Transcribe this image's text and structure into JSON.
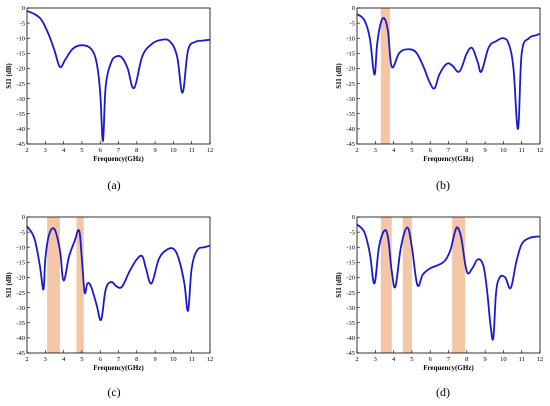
{
  "chart_data": [
    {
      "type": "line",
      "panel_label": "(a)",
      "xlabel": "Frequency(GHz)",
      "ylabel": "S11 (dB)",
      "xlim": [
        2,
        12
      ],
      "ylim": [
        -45,
        0
      ],
      "xticks": [
        2,
        3,
        4,
        5,
        6,
        7,
        8,
        9,
        10,
        11,
        12
      ],
      "yticks": [
        0,
        -5,
        -10,
        -15,
        -20,
        -25,
        -30,
        -35,
        -40,
        -45
      ],
      "line_color": "#1a1acc",
      "band_color": "#f5c6a5",
      "bands": [],
      "series": [
        {
          "x": [
            2,
            2.4,
            2.8,
            3.2,
            3.5,
            3.8,
            4.1,
            4.5,
            5.0,
            5.5,
            5.8,
            6.0,
            6.15,
            6.3,
            6.6,
            6.9,
            7.2,
            7.5,
            7.85,
            8.3,
            8.8,
            9.3,
            9.8,
            10.2,
            10.5,
            10.8,
            11.2,
            11.6,
            12
          ],
          "y": [
            -1,
            -2,
            -4,
            -9,
            -14,
            -19.5,
            -17,
            -13.5,
            -12.3,
            -13.5,
            -18,
            -28,
            -44,
            -26,
            -18,
            -16,
            -16.5,
            -20,
            -26.5,
            -16,
            -12,
            -10.6,
            -11,
            -16,
            -28,
            -14,
            -11.2,
            -10.8,
            -10.5
          ]
        }
      ]
    },
    {
      "type": "line",
      "panel_label": "(b)",
      "xlabel": "Frequency(GHz)",
      "ylabel": "S11 (dB)",
      "xlim": [
        2,
        12
      ],
      "ylim": [
        -45,
        0
      ],
      "xticks": [
        2,
        3,
        4,
        5,
        6,
        7,
        8,
        9,
        10,
        11,
        12
      ],
      "yticks": [
        0,
        -5,
        -10,
        -15,
        -20,
        -25,
        -30,
        -35,
        -40,
        -45
      ],
      "line_color": "#1a1acc",
      "band_color": "#f5c6a5",
      "bands": [
        [
          3.3,
          3.8
        ]
      ],
      "series": [
        {
          "x": [
            2,
            2.4,
            2.7,
            2.95,
            3.1,
            3.3,
            3.5,
            3.7,
            3.9,
            4.3,
            4.7,
            5.2,
            5.6,
            6.0,
            6.25,
            6.5,
            6.9,
            7.2,
            7.6,
            8.0,
            8.3,
            8.6,
            8.8,
            9.2,
            9.6,
            10.0,
            10.3,
            10.55,
            10.8,
            11.0,
            11.4,
            11.8,
            12
          ],
          "y": [
            -2,
            -4,
            -10,
            -22,
            -12,
            -5,
            -3.5,
            -8,
            -19.5,
            -15,
            -13.7,
            -14.5,
            -19,
            -25,
            -26.5,
            -22,
            -18.5,
            -19,
            -21,
            -15,
            -13.3,
            -18,
            -21,
            -13,
            -11,
            -10,
            -12,
            -20,
            -40,
            -15,
            -10,
            -9,
            -8.5
          ]
        }
      ]
    },
    {
      "type": "line",
      "panel_label": "(c)",
      "xlabel": "Frequency(GHz)",
      "ylabel": "S11 (dB)",
      "xlim": [
        2,
        12
      ],
      "ylim": [
        -45,
        0
      ],
      "xticks": [
        2,
        3,
        4,
        5,
        6,
        7,
        8,
        9,
        10,
        11,
        12
      ],
      "yticks": [
        0,
        -5,
        -10,
        -15,
        -20,
        -25,
        -30,
        -35,
        -40,
        -45
      ],
      "line_color": "#1a1acc",
      "band_color": "#f5c6a5",
      "bands": [
        [
          3.1,
          3.8
        ],
        [
          4.7,
          5.1
        ]
      ],
      "series": [
        {
          "x": [
            2,
            2.4,
            2.7,
            2.9,
            3.0,
            3.2,
            3.5,
            3.8,
            4.0,
            4.3,
            4.6,
            4.85,
            5.0,
            5.15,
            5.3,
            5.5,
            5.8,
            6.05,
            6.3,
            6.6,
            6.9,
            7.2,
            7.6,
            8.0,
            8.3,
            8.5,
            8.8,
            9.2,
            9.6,
            10.0,
            10.3,
            10.6,
            10.8,
            11.0,
            11.3,
            11.7,
            12
          ],
          "y": [
            -3,
            -7,
            -16,
            -24,
            -14,
            -6,
            -4,
            -11,
            -21,
            -13,
            -8,
            -4.5,
            -14,
            -25,
            -22,
            -23,
            -29,
            -34,
            -24,
            -21.5,
            -23,
            -23,
            -18,
            -14,
            -13,
            -17,
            -22,
            -14,
            -11,
            -10.5,
            -14,
            -22,
            -31,
            -17,
            -11,
            -10,
            -9.5
          ]
        }
      ]
    },
    {
      "type": "line",
      "panel_label": "(d)",
      "xlabel": "Frequency(GHz)",
      "ylabel": "S11 (dB)",
      "xlim": [
        2,
        12
      ],
      "ylim": [
        -45,
        0
      ],
      "xticks": [
        2,
        3,
        4,
        5,
        6,
        7,
        8,
        9,
        10,
        11,
        12
      ],
      "yticks": [
        0,
        -5,
        -10,
        -15,
        -20,
        -25,
        -30,
        -35,
        -40,
        -45
      ],
      "line_color": "#1a1acc",
      "band_color": "#f5c6a5",
      "bands": [
        [
          3.3,
          3.9
        ],
        [
          4.5,
          5.0
        ],
        [
          7.2,
          7.9
        ]
      ],
      "series": [
        {
          "x": [
            2,
            2.4,
            2.7,
            2.95,
            3.2,
            3.5,
            3.7,
            3.9,
            4.1,
            4.4,
            4.75,
            5.0,
            5.3,
            5.6,
            6.0,
            6.4,
            6.8,
            7.1,
            7.35,
            7.5,
            7.7,
            8.0,
            8.3,
            8.6,
            8.9,
            9.1,
            9.3,
            9.45,
            9.6,
            9.8,
            10.1,
            10.4,
            10.7,
            11.0,
            11.4,
            11.8,
            12
          ],
          "y": [
            -2.5,
            -5,
            -12,
            -22,
            -10,
            -4.5,
            -7,
            -18,
            -23,
            -10,
            -3.5,
            -10,
            -22.5,
            -19,
            -17,
            -16,
            -14.5,
            -11,
            -5,
            -3.5,
            -7,
            -18,
            -17,
            -14,
            -16,
            -24,
            -36,
            -40,
            -25,
            -20,
            -20,
            -23.5,
            -15,
            -9,
            -7,
            -6.5,
            -6.5
          ]
        }
      ]
    }
  ]
}
